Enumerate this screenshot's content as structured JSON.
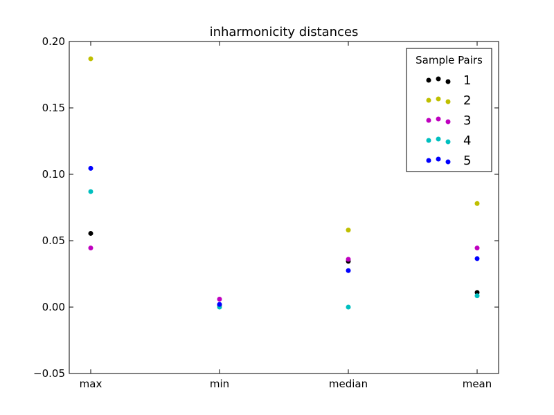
{
  "chart_data": {
    "type": "scatter",
    "title": "inharmonicity distances",
    "xlabel": "",
    "ylabel": "",
    "categories": [
      "max",
      "min",
      "median",
      "mean"
    ],
    "ylim": [
      -0.05,
      0.2
    ],
    "yticks": [
      "0.20",
      "0.15",
      "0.10",
      "0.05",
      "0.00",
      "−0.05"
    ],
    "ytick_values": [
      0.2,
      0.15,
      0.1,
      0.05,
      0.0,
      -0.05
    ],
    "grid": false,
    "legend": {
      "title": "Sample Pairs",
      "position": "top-right"
    },
    "series": [
      {
        "name": "1",
        "color": "#000000",
        "values": [
          0.0555,
          0.0015,
          0.0345,
          0.011
        ]
      },
      {
        "name": "2",
        "color": "#bfbf00",
        "values": [
          0.187,
          0.001,
          0.058,
          0.078
        ]
      },
      {
        "name": "3",
        "color": "#bf00bf",
        "values": [
          0.0445,
          0.006,
          0.036,
          0.0445
        ]
      },
      {
        "name": "4",
        "color": "#00bfbf",
        "values": [
          0.087,
          0.0,
          0.0,
          0.0085
        ]
      },
      {
        "name": "5",
        "color": "#0000ff",
        "values": [
          0.1045,
          0.002,
          0.0275,
          0.0365
        ]
      }
    ]
  }
}
